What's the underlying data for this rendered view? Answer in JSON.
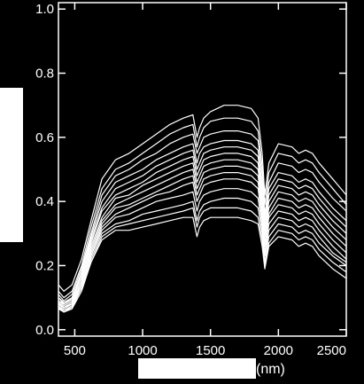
{
  "chart_data": {
    "type": "line",
    "title": "",
    "xlabel": "(nm)",
    "ylabel": "",
    "xlim": [
      380,
      2500
    ],
    "ylim": [
      -0.02,
      1.02
    ],
    "xticks": [
      500,
      1000,
      1500,
      2000,
      2500
    ],
    "xtick_labels": [
      "500",
      "1000",
      "1500",
      "2000",
      "2500"
    ],
    "yticks": [
      0.0,
      0.2,
      0.4,
      0.6,
      0.8,
      1.0
    ],
    "ytick_labels": [
      "0.0",
      "0.2",
      "0.4",
      "0.6",
      "0.8",
      "1.0"
    ],
    "grid": false,
    "legend": "none",
    "colors": {
      "background": "#000000",
      "line": "#ffffff",
      "axis": "#ffffff"
    },
    "x": [
      380,
      420,
      480,
      550,
      620,
      700,
      800,
      900,
      1000,
      1100,
      1200,
      1300,
      1370,
      1400,
      1420,
      1450,
      1500,
      1600,
      1700,
      1800,
      1850,
      1880,
      1900,
      1930,
      2000,
      2100,
      2150,
      2200,
      2250,
      2300,
      2400,
      2500
    ],
    "series": [
      {
        "values": [
          0.14,
          0.12,
          0.14,
          0.22,
          0.34,
          0.47,
          0.53,
          0.55,
          0.58,
          0.61,
          0.64,
          0.66,
          0.67,
          0.6,
          0.63,
          0.66,
          0.68,
          0.7,
          0.7,
          0.69,
          0.66,
          0.55,
          0.42,
          0.52,
          0.58,
          0.57,
          0.55,
          0.56,
          0.55,
          0.52,
          0.47,
          0.42
        ]
      },
      {
        "values": [
          0.12,
          0.1,
          0.12,
          0.2,
          0.32,
          0.44,
          0.5,
          0.52,
          0.55,
          0.58,
          0.61,
          0.63,
          0.64,
          0.57,
          0.6,
          0.63,
          0.65,
          0.66,
          0.66,
          0.65,
          0.62,
          0.51,
          0.39,
          0.49,
          0.55,
          0.54,
          0.52,
          0.53,
          0.52,
          0.49,
          0.44,
          0.39
        ]
      },
      {
        "values": [
          0.11,
          0.09,
          0.11,
          0.19,
          0.3,
          0.42,
          0.48,
          0.5,
          0.53,
          0.55,
          0.58,
          0.6,
          0.61,
          0.55,
          0.57,
          0.6,
          0.61,
          0.62,
          0.62,
          0.61,
          0.59,
          0.48,
          0.36,
          0.46,
          0.52,
          0.51,
          0.49,
          0.5,
          0.49,
          0.46,
          0.41,
          0.37
        ]
      },
      {
        "values": [
          0.1,
          0.085,
          0.1,
          0.18,
          0.29,
          0.4,
          0.46,
          0.48,
          0.5,
          0.53,
          0.55,
          0.57,
          0.58,
          0.52,
          0.55,
          0.57,
          0.58,
          0.59,
          0.59,
          0.58,
          0.56,
          0.45,
          0.34,
          0.44,
          0.49,
          0.48,
          0.46,
          0.47,
          0.46,
          0.43,
          0.38,
          0.34
        ]
      },
      {
        "values": [
          0.1,
          0.08,
          0.1,
          0.17,
          0.28,
          0.38,
          0.44,
          0.46,
          0.48,
          0.51,
          0.53,
          0.55,
          0.56,
          0.5,
          0.52,
          0.55,
          0.56,
          0.57,
          0.57,
          0.56,
          0.54,
          0.43,
          0.32,
          0.42,
          0.47,
          0.46,
          0.44,
          0.45,
          0.44,
          0.41,
          0.36,
          0.32
        ]
      },
      {
        "values": [
          0.09,
          0.08,
          0.095,
          0.17,
          0.27,
          0.37,
          0.42,
          0.44,
          0.46,
          0.49,
          0.51,
          0.53,
          0.54,
          0.48,
          0.5,
          0.53,
          0.54,
          0.55,
          0.55,
          0.54,
          0.52,
          0.41,
          0.3,
          0.4,
          0.45,
          0.44,
          0.42,
          0.43,
          0.42,
          0.39,
          0.34,
          0.3
        ]
      },
      {
        "values": [
          0.09,
          0.075,
          0.09,
          0.16,
          0.26,
          0.35,
          0.41,
          0.42,
          0.45,
          0.47,
          0.49,
          0.51,
          0.52,
          0.46,
          0.48,
          0.51,
          0.52,
          0.53,
          0.53,
          0.52,
          0.5,
          0.4,
          0.29,
          0.38,
          0.43,
          0.42,
          0.4,
          0.41,
          0.4,
          0.37,
          0.32,
          0.28
        ]
      },
      {
        "values": [
          0.085,
          0.07,
          0.085,
          0.15,
          0.25,
          0.34,
          0.39,
          0.41,
          0.43,
          0.45,
          0.47,
          0.49,
          0.5,
          0.44,
          0.46,
          0.49,
          0.5,
          0.51,
          0.51,
          0.5,
          0.48,
          0.38,
          0.27,
          0.36,
          0.41,
          0.4,
          0.38,
          0.39,
          0.38,
          0.35,
          0.3,
          0.26
        ]
      },
      {
        "values": [
          0.08,
          0.07,
          0.08,
          0.15,
          0.24,
          0.33,
          0.38,
          0.39,
          0.41,
          0.43,
          0.45,
          0.47,
          0.48,
          0.42,
          0.44,
          0.47,
          0.48,
          0.49,
          0.49,
          0.48,
          0.46,
          0.36,
          0.26,
          0.35,
          0.39,
          0.38,
          0.36,
          0.37,
          0.36,
          0.33,
          0.28,
          0.24
        ]
      },
      {
        "values": [
          0.08,
          0.065,
          0.08,
          0.14,
          0.23,
          0.32,
          0.36,
          0.38,
          0.4,
          0.42,
          0.43,
          0.45,
          0.46,
          0.4,
          0.42,
          0.45,
          0.46,
          0.47,
          0.47,
          0.46,
          0.44,
          0.34,
          0.24,
          0.33,
          0.37,
          0.36,
          0.34,
          0.35,
          0.34,
          0.31,
          0.26,
          0.22
        ]
      },
      {
        "values": [
          0.075,
          0.06,
          0.075,
          0.14,
          0.23,
          0.31,
          0.35,
          0.36,
          0.38,
          0.4,
          0.41,
          0.42,
          0.43,
          0.37,
          0.4,
          0.42,
          0.43,
          0.44,
          0.44,
          0.43,
          0.41,
          0.32,
          0.23,
          0.31,
          0.35,
          0.34,
          0.32,
          0.33,
          0.32,
          0.29,
          0.24,
          0.21
        ]
      },
      {
        "values": [
          0.07,
          0.06,
          0.07,
          0.13,
          0.22,
          0.3,
          0.33,
          0.34,
          0.36,
          0.37,
          0.38,
          0.39,
          0.4,
          0.34,
          0.37,
          0.39,
          0.4,
          0.41,
          0.41,
          0.4,
          0.38,
          0.3,
          0.21,
          0.29,
          0.33,
          0.32,
          0.3,
          0.31,
          0.3,
          0.27,
          0.23,
          0.2
        ]
      },
      {
        "values": [
          0.07,
          0.055,
          0.07,
          0.13,
          0.21,
          0.29,
          0.32,
          0.33,
          0.34,
          0.35,
          0.36,
          0.37,
          0.38,
          0.32,
          0.35,
          0.37,
          0.38,
          0.38,
          0.38,
          0.37,
          0.35,
          0.28,
          0.2,
          0.27,
          0.31,
          0.3,
          0.28,
          0.29,
          0.28,
          0.25,
          0.21,
          0.18
        ]
      },
      {
        "values": [
          0.065,
          0.055,
          0.065,
          0.12,
          0.21,
          0.28,
          0.31,
          0.31,
          0.32,
          0.33,
          0.34,
          0.35,
          0.35,
          0.29,
          0.32,
          0.34,
          0.35,
          0.35,
          0.35,
          0.34,
          0.33,
          0.26,
          0.19,
          0.26,
          0.29,
          0.28,
          0.26,
          0.27,
          0.26,
          0.23,
          0.19,
          0.16
        ]
      }
    ]
  }
}
